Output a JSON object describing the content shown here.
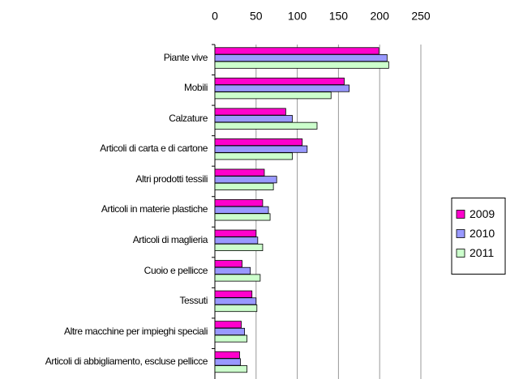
{
  "chart_data": {
    "type": "bar",
    "orientation": "horizontal",
    "categories": [
      "Piante vive",
      "Mobili",
      "Calzature",
      "Articoli di carta e di cartone",
      "Altri prodotti tessili",
      "Articoli in materie plastiche",
      "Articoli di maglieria",
      "Cuoio e pellicce",
      "Tessuti",
      "Altre macchine per impieghi speciali",
      "Articoli di abbigliamento, escluse pellicce"
    ],
    "series": [
      {
        "name": "2009",
        "color": "#ff00cc",
        "values": [
          199,
          157,
          86,
          106,
          60,
          58,
          50,
          33,
          45,
          32,
          30
        ]
      },
      {
        "name": "2010",
        "color": "#9999ff",
        "values": [
          209,
          163,
          94,
          112,
          75,
          65,
          52,
          43,
          50,
          36,
          31
        ]
      },
      {
        "name": "2011",
        "color": "#ccffcc",
        "values": [
          211,
          141,
          124,
          94,
          71,
          67,
          58,
          55,
          51,
          39,
          39
        ]
      }
    ],
    "xlim": [
      0,
      250
    ],
    "xticks": [
      0,
      50,
      100,
      150,
      200,
      250
    ],
    "grid": true,
    "legend": "right"
  }
}
